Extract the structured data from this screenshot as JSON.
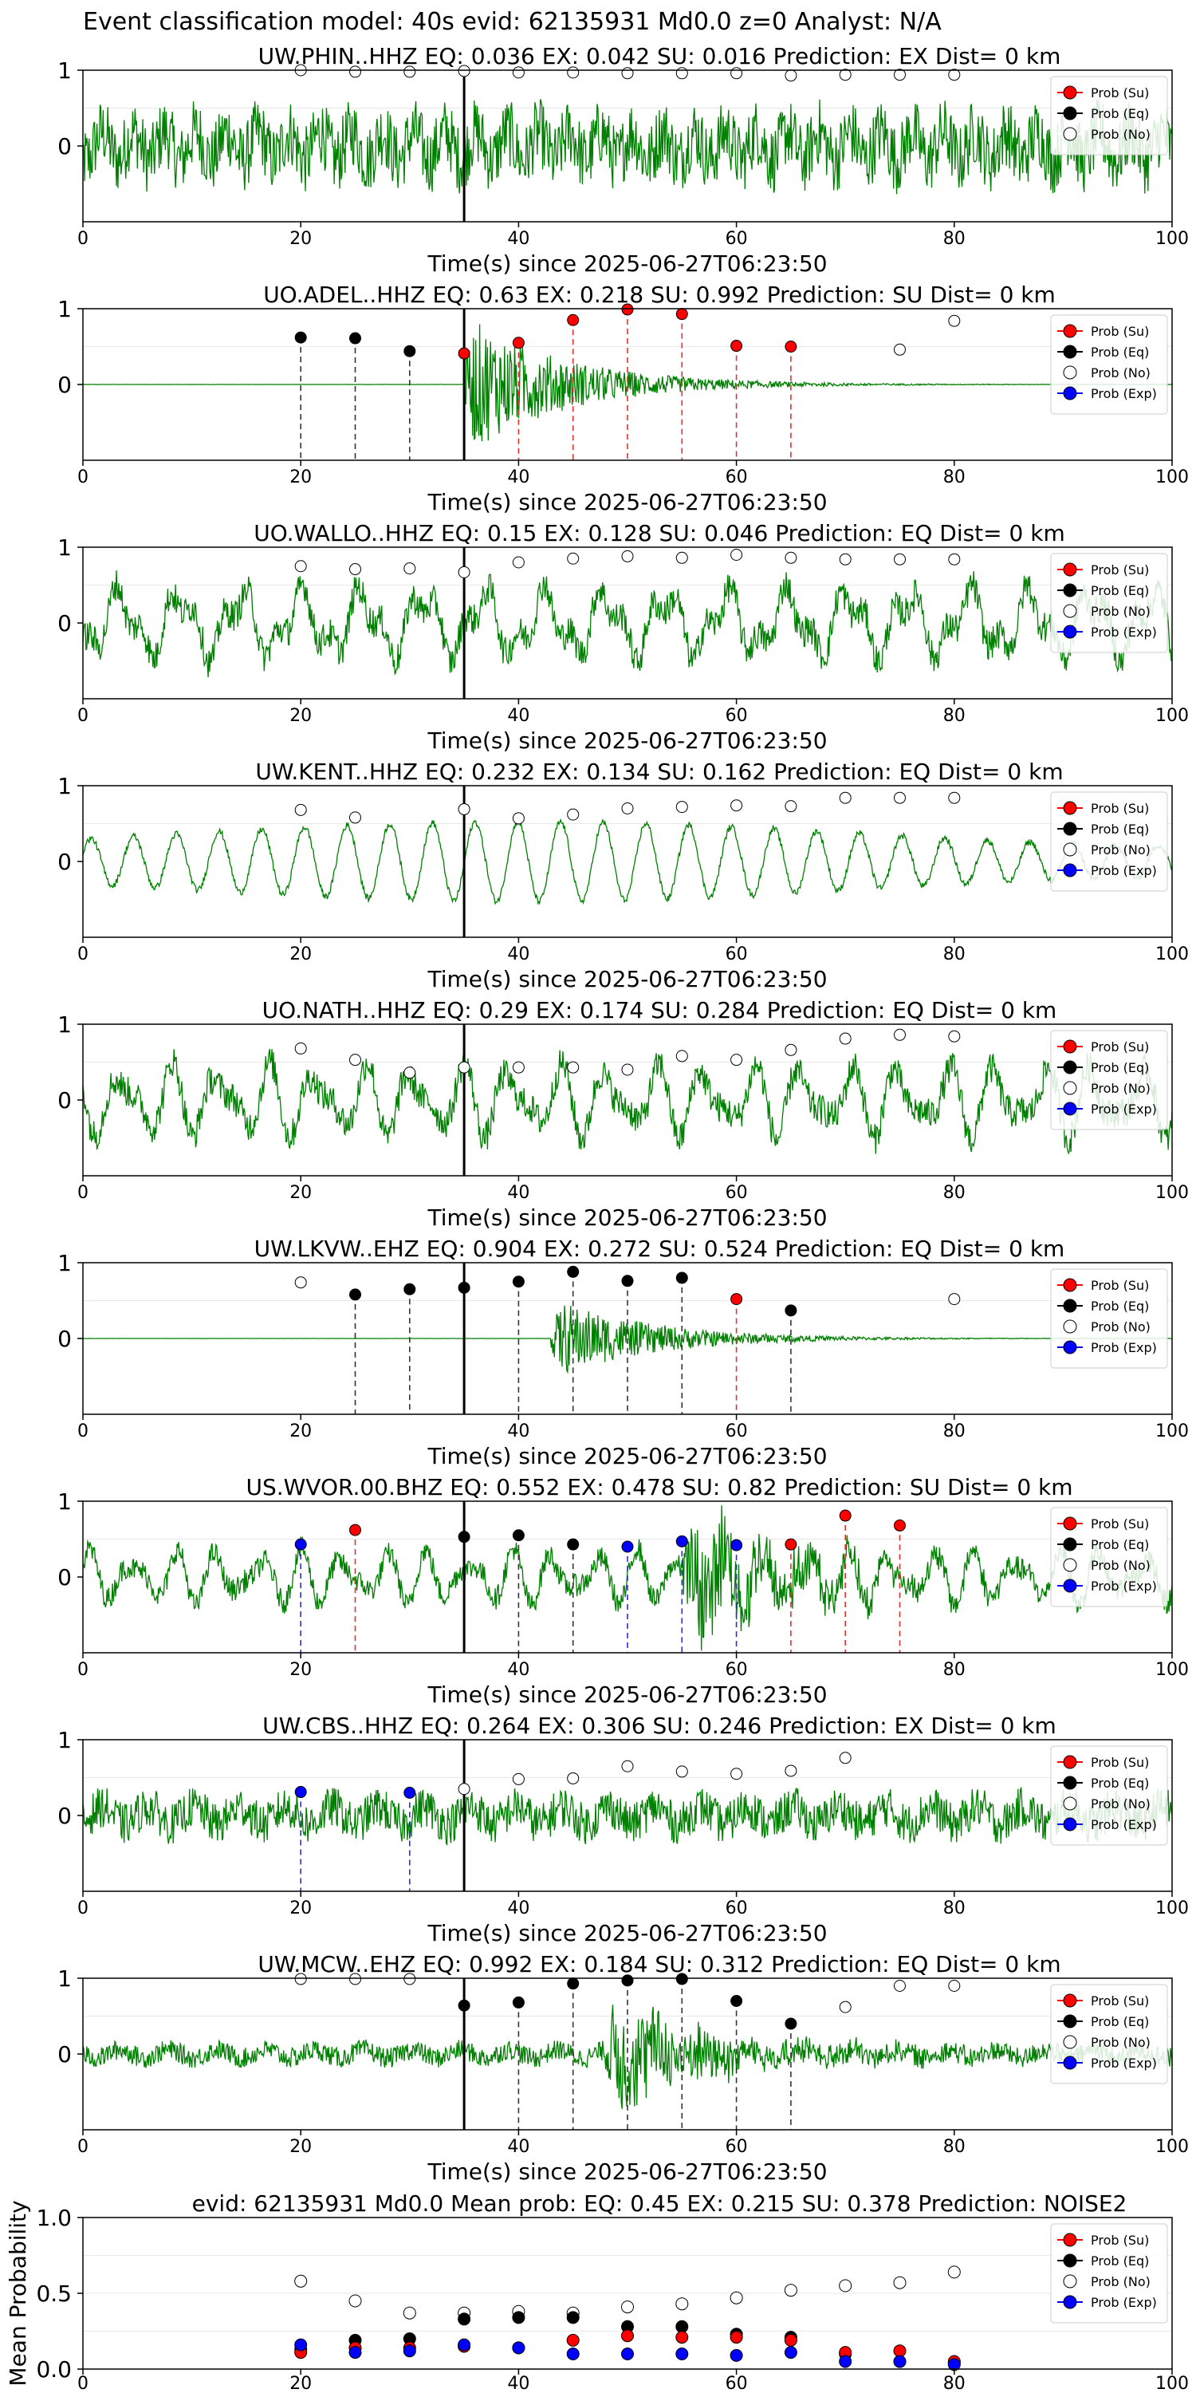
{
  "figure": {
    "suptitle": "Event classification model: 40s evid: 62135931 Md0.0 z=0 Analyst: N/A"
  },
  "legend": {
    "su": "Prob (Su)",
    "eq": "Prob (Eq)",
    "no": "Prob (No)",
    "exp": "Prob (Exp)"
  },
  "colors": {
    "waveform": "#008000",
    "su": "#ff0000",
    "eq": "#000000",
    "no": "#ffffff",
    "exp": "#0000ff",
    "pick_line": "#000000"
  },
  "chart_data": [
    {
      "type": "line",
      "title": "UW.PHIN..HHZ   EQ: 0.036  EX: 0.042  SU: 0.016   Prediction: EX    Dist= 0 km",
      "xlabel": "Time(s) since 2025-06-27T06:23:50",
      "xlim": [
        0,
        100
      ],
      "ylim": [
        -1,
        1
      ],
      "xticks": [
        "0",
        "20",
        "40",
        "60",
        "80",
        "100"
      ],
      "yticks": [
        "0",
        "1"
      ],
      "pick_time": 35,
      "waveform": {
        "style": "noise",
        "amplitude": 0.75,
        "event_start": null
      },
      "legend_entries": [
        "su",
        "eq",
        "no"
      ],
      "points": [
        {
          "x": 20,
          "cls": "no",
          "y": 1.0
        },
        {
          "x": 25,
          "cls": "no",
          "y": 0.98
        },
        {
          "x": 30,
          "cls": "no",
          "y": 0.98
        },
        {
          "x": 35,
          "cls": "no",
          "y": 0.99
        },
        {
          "x": 40,
          "cls": "no",
          "y": 0.97
        },
        {
          "x": 45,
          "cls": "no",
          "y": 0.97
        },
        {
          "x": 50,
          "cls": "no",
          "y": 0.96
        },
        {
          "x": 55,
          "cls": "no",
          "y": 0.96
        },
        {
          "x": 60,
          "cls": "no",
          "y": 0.96
        },
        {
          "x": 65,
          "cls": "no",
          "y": 0.93
        },
        {
          "x": 70,
          "cls": "no",
          "y": 0.94
        },
        {
          "x": 75,
          "cls": "no",
          "y": 0.94
        },
        {
          "x": 80,
          "cls": "no",
          "y": 0.94
        }
      ]
    },
    {
      "type": "line",
      "title": "UO.ADEL..HHZ   EQ: 0.63  EX: 0.218  SU: 0.992   Prediction: SU    Dist= 0 km",
      "xlabel": "Time(s) since 2025-06-27T06:23:50",
      "xlim": [
        0,
        100
      ],
      "ylim": [
        -1,
        1
      ],
      "xticks": [
        "0",
        "20",
        "40",
        "60",
        "80",
        "100"
      ],
      "yticks": [
        "0",
        "1"
      ],
      "pick_time": 35,
      "waveform": {
        "style": "event",
        "amplitude": 0.03,
        "event_start": 35,
        "event_amp": 0.95
      },
      "legend_entries": [
        "su",
        "eq",
        "no",
        "exp"
      ],
      "points": [
        {
          "x": 20,
          "cls": "eq",
          "y": 0.62
        },
        {
          "x": 25,
          "cls": "eq",
          "y": 0.61
        },
        {
          "x": 30,
          "cls": "eq",
          "y": 0.44
        },
        {
          "x": 35,
          "cls": "su",
          "y": 0.41
        },
        {
          "x": 40,
          "cls": "su",
          "y": 0.55
        },
        {
          "x": 45,
          "cls": "su",
          "y": 0.85
        },
        {
          "x": 50,
          "cls": "su",
          "y": 0.99
        },
        {
          "x": 55,
          "cls": "su",
          "y": 0.93
        },
        {
          "x": 60,
          "cls": "su",
          "y": 0.51
        },
        {
          "x": 65,
          "cls": "su",
          "y": 0.5
        },
        {
          "x": 75,
          "cls": "no",
          "y": 0.46
        },
        {
          "x": 80,
          "cls": "no",
          "y": 0.84
        }
      ]
    },
    {
      "type": "line",
      "title": "UO.WALLO..HHZ   EQ: 0.15  EX: 0.128  SU: 0.046   Prediction: EQ    Dist= 0 km",
      "xlabel": "Time(s) since 2025-06-27T06:23:50",
      "xlim": [
        0,
        100
      ],
      "ylim": [
        -1,
        1
      ],
      "xticks": [
        "0",
        "20",
        "40",
        "60",
        "80",
        "100"
      ],
      "yticks": [
        "0",
        "1"
      ],
      "pick_time": 35,
      "waveform": {
        "style": "wavy",
        "amplitude": 0.75,
        "event_start": null
      },
      "legend_entries": [
        "su",
        "eq",
        "no",
        "exp"
      ],
      "points": [
        {
          "x": 20,
          "cls": "no",
          "y": 0.75
        },
        {
          "x": 25,
          "cls": "no",
          "y": 0.71
        },
        {
          "x": 30,
          "cls": "no",
          "y": 0.72
        },
        {
          "x": 35,
          "cls": "no",
          "y": 0.67
        },
        {
          "x": 40,
          "cls": "no",
          "y": 0.8
        },
        {
          "x": 45,
          "cls": "no",
          "y": 0.85
        },
        {
          "x": 50,
          "cls": "no",
          "y": 0.88
        },
        {
          "x": 55,
          "cls": "no",
          "y": 0.86
        },
        {
          "x": 60,
          "cls": "no",
          "y": 0.9
        },
        {
          "x": 65,
          "cls": "no",
          "y": 0.86
        },
        {
          "x": 70,
          "cls": "no",
          "y": 0.84
        },
        {
          "x": 75,
          "cls": "no",
          "y": 0.84
        },
        {
          "x": 80,
          "cls": "no",
          "y": 0.84
        }
      ]
    },
    {
      "type": "line",
      "title": "UW.KENT..HHZ   EQ: 0.232  EX: 0.134  SU: 0.162   Prediction: EQ    Dist= 0 km",
      "xlabel": "Time(s) since 2025-06-27T06:23:50",
      "xlim": [
        0,
        100
      ],
      "ylim": [
        -1,
        1
      ],
      "xticks": [
        "0",
        "20",
        "40",
        "60",
        "80",
        "100"
      ],
      "yticks": [
        "0",
        "1"
      ],
      "pick_time": 35,
      "waveform": {
        "style": "smooth",
        "amplitude": 0.7,
        "event_start": null
      },
      "legend_entries": [
        "su",
        "eq",
        "no",
        "exp"
      ],
      "points": [
        {
          "x": 20,
          "cls": "no",
          "y": 0.68
        },
        {
          "x": 25,
          "cls": "no",
          "y": 0.58
        },
        {
          "x": 35,
          "cls": "no",
          "y": 0.69
        },
        {
          "x": 40,
          "cls": "no",
          "y": 0.57
        },
        {
          "x": 45,
          "cls": "no",
          "y": 0.62
        },
        {
          "x": 50,
          "cls": "no",
          "y": 0.7
        },
        {
          "x": 55,
          "cls": "no",
          "y": 0.72
        },
        {
          "x": 60,
          "cls": "no",
          "y": 0.74
        },
        {
          "x": 65,
          "cls": "no",
          "y": 0.73
        },
        {
          "x": 70,
          "cls": "no",
          "y": 0.84
        },
        {
          "x": 75,
          "cls": "no",
          "y": 0.84
        },
        {
          "x": 80,
          "cls": "no",
          "y": 0.84
        }
      ]
    },
    {
      "type": "line",
      "title": "UO.NATH..HHZ   EQ: 0.29  EX: 0.174  SU: 0.284   Prediction: EQ    Dist= 0 km",
      "xlabel": "Time(s) since 2025-06-27T06:23:50",
      "xlim": [
        0,
        100
      ],
      "ylim": [
        -1,
        1
      ],
      "xticks": [
        "0",
        "20",
        "40",
        "60",
        "80",
        "100"
      ],
      "yticks": [
        "0",
        "1"
      ],
      "pick_time": 35,
      "waveform": {
        "style": "wavy",
        "amplitude": 0.75,
        "event_start": null
      },
      "legend_entries": [
        "su",
        "eq",
        "no",
        "exp"
      ],
      "points": [
        {
          "x": 20,
          "cls": "no",
          "y": 0.68
        },
        {
          "x": 25,
          "cls": "no",
          "y": 0.53
        },
        {
          "x": 30,
          "cls": "no",
          "y": 0.36
        },
        {
          "x": 35,
          "cls": "no",
          "y": 0.43
        },
        {
          "x": 40,
          "cls": "no",
          "y": 0.43
        },
        {
          "x": 45,
          "cls": "no",
          "y": 0.43
        },
        {
          "x": 50,
          "cls": "no",
          "y": 0.4
        },
        {
          "x": 55,
          "cls": "no",
          "y": 0.58
        },
        {
          "x": 60,
          "cls": "no",
          "y": 0.53
        },
        {
          "x": 65,
          "cls": "no",
          "y": 0.66
        },
        {
          "x": 70,
          "cls": "no",
          "y": 0.81
        },
        {
          "x": 75,
          "cls": "no",
          "y": 0.86
        },
        {
          "x": 80,
          "cls": "no",
          "y": 0.84
        }
      ]
    },
    {
      "type": "line",
      "title": "UW.LKVW..EHZ   EQ: 0.904  EX: 0.272  SU: 0.524   Prediction: EQ    Dist= 0 km",
      "xlabel": "Time(s) since 2025-06-27T06:23:50",
      "xlim": [
        0,
        100
      ],
      "ylim": [
        -1,
        1
      ],
      "xticks": [
        "0",
        "20",
        "40",
        "60",
        "80",
        "100"
      ],
      "yticks": [
        "0",
        "1"
      ],
      "pick_time": 35,
      "waveform": {
        "style": "event",
        "amplitude": 0.03,
        "event_start": 43,
        "event_amp": 0.55
      },
      "legend_entries": [
        "su",
        "eq",
        "no",
        "exp"
      ],
      "points": [
        {
          "x": 20,
          "cls": "no",
          "y": 0.74
        },
        {
          "x": 25,
          "cls": "eq",
          "y": 0.58
        },
        {
          "x": 30,
          "cls": "eq",
          "y": 0.65
        },
        {
          "x": 35,
          "cls": "eq",
          "y": 0.67
        },
        {
          "x": 40,
          "cls": "eq",
          "y": 0.75
        },
        {
          "x": 45,
          "cls": "eq",
          "y": 0.88
        },
        {
          "x": 50,
          "cls": "eq",
          "y": 0.76
        },
        {
          "x": 55,
          "cls": "eq",
          "y": 0.8
        },
        {
          "x": 60,
          "cls": "su",
          "y": 0.52
        },
        {
          "x": 65,
          "cls": "eq",
          "y": 0.37
        },
        {
          "x": 80,
          "cls": "no",
          "y": 0.52
        }
      ]
    },
    {
      "type": "line",
      "title": "US.WVOR.00.BHZ   EQ: 0.552  EX: 0.478  SU: 0.82   Prediction: SU    Dist= 0 km",
      "xlabel": "Time(s) since 2025-06-27T06:23:50",
      "xlim": [
        0,
        100
      ],
      "ylim": [
        -1,
        1
      ],
      "xticks": [
        "0",
        "20",
        "40",
        "60",
        "80",
        "100"
      ],
      "yticks": [
        "0",
        "1"
      ],
      "pick_time": 35,
      "waveform": {
        "style": "wavy",
        "amplitude": 0.55,
        "event_start": 55,
        "event_amp": 0.9
      },
      "legend_entries": [
        "su",
        "eq",
        "no",
        "exp"
      ],
      "points": [
        {
          "x": 20,
          "cls": "exp",
          "y": 0.43
        },
        {
          "x": 25,
          "cls": "su",
          "y": 0.62
        },
        {
          "x": 35,
          "cls": "eq",
          "y": 0.53
        },
        {
          "x": 40,
          "cls": "eq",
          "y": 0.55
        },
        {
          "x": 45,
          "cls": "eq",
          "y": 0.43
        },
        {
          "x": 50,
          "cls": "exp",
          "y": 0.4
        },
        {
          "x": 55,
          "cls": "exp",
          "y": 0.47
        },
        {
          "x": 60,
          "cls": "exp",
          "y": 0.42
        },
        {
          "x": 65,
          "cls": "su",
          "y": 0.43
        },
        {
          "x": 70,
          "cls": "su",
          "y": 0.81
        },
        {
          "x": 75,
          "cls": "su",
          "y": 0.68
        }
      ]
    },
    {
      "type": "line",
      "title": "UW.CBS..HHZ   EQ: 0.264  EX: 0.306  SU: 0.246   Prediction: EX    Dist= 0 km",
      "xlabel": "Time(s) since 2025-06-27T06:23:50",
      "xlim": [
        0,
        100
      ],
      "ylim": [
        -1,
        1
      ],
      "xticks": [
        "0",
        "20",
        "40",
        "60",
        "80",
        "100"
      ],
      "yticks": [
        "0",
        "1"
      ],
      "pick_time": 35,
      "waveform": {
        "style": "noise",
        "amplitude": 0.45,
        "event_start": null
      },
      "legend_entries": [
        "su",
        "eq",
        "no",
        "exp"
      ],
      "points": [
        {
          "x": 20,
          "cls": "exp",
          "y": 0.31
        },
        {
          "x": 30,
          "cls": "exp",
          "y": 0.3
        },
        {
          "x": 35,
          "cls": "no",
          "y": 0.35
        },
        {
          "x": 40,
          "cls": "no",
          "y": 0.48
        },
        {
          "x": 45,
          "cls": "no",
          "y": 0.49
        },
        {
          "x": 50,
          "cls": "no",
          "y": 0.65
        },
        {
          "x": 55,
          "cls": "no",
          "y": 0.58
        },
        {
          "x": 60,
          "cls": "no",
          "y": 0.55
        },
        {
          "x": 65,
          "cls": "no",
          "y": 0.59
        },
        {
          "x": 70,
          "cls": "no",
          "y": 0.76
        }
      ]
    },
    {
      "type": "line",
      "title": "UW.MCW..EHZ   EQ: 0.992  EX: 0.184  SU: 0.312   Prediction: EQ    Dist= 0 km",
      "xlabel": "Time(s) since 2025-06-27T06:23:50",
      "xlim": [
        0,
        100
      ],
      "ylim": [
        -1,
        1
      ],
      "xticks": [
        "0",
        "20",
        "40",
        "60",
        "80",
        "100"
      ],
      "yticks": [
        "0",
        "1"
      ],
      "pick_time": 35,
      "waveform": {
        "style": "noise",
        "amplitude": 0.22,
        "event_start": 48,
        "event_amp": 0.85
      },
      "legend_entries": [
        "su",
        "eq",
        "no",
        "exp"
      ],
      "points": [
        {
          "x": 20,
          "cls": "no",
          "y": 0.99
        },
        {
          "x": 25,
          "cls": "no",
          "y": 0.99
        },
        {
          "x": 30,
          "cls": "no",
          "y": 0.99
        },
        {
          "x": 35,
          "cls": "eq",
          "y": 0.64
        },
        {
          "x": 40,
          "cls": "eq",
          "y": 0.68
        },
        {
          "x": 45,
          "cls": "eq",
          "y": 0.93
        },
        {
          "x": 50,
          "cls": "eq",
          "y": 0.97
        },
        {
          "x": 55,
          "cls": "eq",
          "y": 0.99
        },
        {
          "x": 60,
          "cls": "eq",
          "y": 0.7
        },
        {
          "x": 65,
          "cls": "eq",
          "y": 0.4
        },
        {
          "x": 70,
          "cls": "no",
          "y": 0.62
        },
        {
          "x": 75,
          "cls": "no",
          "y": 0.9
        },
        {
          "x": 80,
          "cls": "no",
          "y": 0.9
        }
      ]
    },
    {
      "type": "scatter",
      "title": "evid: 62135931  Md0.0   Mean prob:    EQ: 0.45  EX: 0.215  SU: 0.378   Prediction: NOISE2",
      "ylabel": "Mean Probability",
      "xlim": [
        0,
        100
      ],
      "ylim": [
        0,
        1
      ],
      "xticks": [
        "0",
        "20",
        "40",
        "60",
        "80",
        "100"
      ],
      "yticks": [
        "0.0",
        "0.5",
        "1.0"
      ],
      "series": [
        {
          "cls": "no",
          "x": [
            20,
            25,
            30,
            35,
            40,
            45,
            50,
            55,
            60,
            65,
            70,
            75,
            80
          ],
          "y": [
            0.58,
            0.45,
            0.37,
            0.37,
            0.38,
            0.37,
            0.41,
            0.43,
            0.47,
            0.52,
            0.55,
            0.57,
            0.64
          ]
        },
        {
          "cls": "eq",
          "x": [
            20,
            25,
            30,
            35,
            40,
            45,
            50,
            55,
            60,
            65,
            70,
            75,
            80
          ],
          "y": [
            0.13,
            0.19,
            0.2,
            0.33,
            0.34,
            0.34,
            0.28,
            0.28,
            0.23,
            0.21,
            0.1,
            0.05,
            0.04
          ]
        },
        {
          "cls": "su",
          "x": [
            20,
            25,
            30,
            35,
            40,
            45,
            50,
            55,
            60,
            65,
            70,
            75,
            80
          ],
          "y": [
            0.11,
            0.14,
            0.14,
            0.15,
            0.14,
            0.19,
            0.22,
            0.21,
            0.21,
            0.19,
            0.11,
            0.12,
            0.05
          ]
        },
        {
          "cls": "exp",
          "x": [
            20,
            25,
            30,
            35,
            40,
            45,
            50,
            55,
            60,
            65,
            70,
            75,
            80
          ],
          "y": [
            0.16,
            0.11,
            0.12,
            0.16,
            0.14,
            0.1,
            0.1,
            0.1,
            0.09,
            0.11,
            0.05,
            0.05,
            0.03
          ]
        }
      ]
    }
  ]
}
